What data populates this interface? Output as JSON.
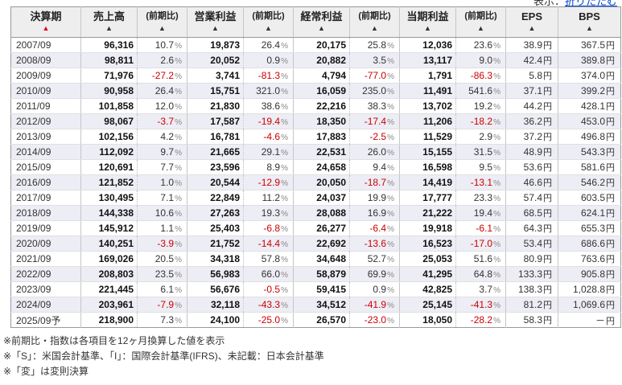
{
  "top_bar": {
    "prefix": "表示：",
    "link_label": "折りたたむ"
  },
  "colors": {
    "negative": "#cc0000",
    "sort_active": "#e60012",
    "link": "#0044cc",
    "header_bg": "#eeeeee",
    "row_alt_bg": "#ededf5"
  },
  "table": {
    "columns": [
      {
        "key": "period",
        "label": "決算期",
        "type": "period",
        "sort": "active"
      },
      {
        "key": "sales",
        "label": "売上高",
        "type": "value"
      },
      {
        "key": "sales_yoy",
        "label": "(前期比)",
        "type": "pct"
      },
      {
        "key": "op",
        "label": "営業利益",
        "type": "value"
      },
      {
        "key": "op_yoy",
        "label": "(前期比)",
        "type": "pct"
      },
      {
        "key": "ord",
        "label": "経常利益",
        "type": "value"
      },
      {
        "key": "ord_yoy",
        "label": "(前期比)",
        "type": "pct"
      },
      {
        "key": "net",
        "label": "当期利益",
        "type": "value"
      },
      {
        "key": "net_yoy",
        "label": "(前期比)",
        "type": "pct"
      },
      {
        "key": "eps",
        "label": "EPS",
        "type": "yen"
      },
      {
        "key": "bps",
        "label": "BPS",
        "type": "yen"
      }
    ],
    "rows": [
      {
        "period": "2007/09",
        "sales": "96,316",
        "sales_yoy": "10.7%",
        "op": "19,873",
        "op_yoy": "26.4%",
        "ord": "20,175",
        "ord_yoy": "25.8%",
        "net": "12,036",
        "net_yoy": "23.6%",
        "eps": "38.9円",
        "bps": "367.5円"
      },
      {
        "period": "2008/09",
        "sales": "98,811",
        "sales_yoy": "2.6%",
        "op": "20,052",
        "op_yoy": "0.9%",
        "ord": "20,882",
        "ord_yoy": "3.5%",
        "net": "13,117",
        "net_yoy": "9.0%",
        "eps": "42.4円",
        "bps": "389.8円"
      },
      {
        "period": "2009/09",
        "sales": "71,976",
        "sales_yoy": "-27.2%",
        "op": "3,741",
        "op_yoy": "-81.3%",
        "ord": "4,794",
        "ord_yoy": "-77.0%",
        "net": "1,791",
        "net_yoy": "-86.3%",
        "eps": "5.8円",
        "bps": "374.0円"
      },
      {
        "period": "2010/09",
        "sales": "90,958",
        "sales_yoy": "26.4%",
        "op": "15,751",
        "op_yoy": "321.0%",
        "ord": "16,059",
        "ord_yoy": "235.0%",
        "net": "11,491",
        "net_yoy": "541.6%",
        "eps": "37.1円",
        "bps": "399.2円"
      },
      {
        "period": "2011/09",
        "sales": "101,858",
        "sales_yoy": "12.0%",
        "op": "21,830",
        "op_yoy": "38.6%",
        "ord": "22,216",
        "ord_yoy": "38.3%",
        "net": "13,702",
        "net_yoy": "19.2%",
        "eps": "44.2円",
        "bps": "428.1円"
      },
      {
        "period": "2012/09",
        "sales": "98,067",
        "sales_yoy": "-3.7%",
        "op": "17,587",
        "op_yoy": "-19.4%",
        "ord": "18,350",
        "ord_yoy": "-17.4%",
        "net": "11,206",
        "net_yoy": "-18.2%",
        "eps": "36.2円",
        "bps": "453.0円"
      },
      {
        "period": "2013/09",
        "sales": "102,156",
        "sales_yoy": "4.2%",
        "op": "16,781",
        "op_yoy": "-4.6%",
        "ord": "17,883",
        "ord_yoy": "-2.5%",
        "net": "11,529",
        "net_yoy": "2.9%",
        "eps": "37.2円",
        "bps": "496.8円"
      },
      {
        "period": "2014/09",
        "sales": "112,092",
        "sales_yoy": "9.7%",
        "op": "21,665",
        "op_yoy": "29.1%",
        "ord": "22,531",
        "ord_yoy": "26.0%",
        "net": "15,155",
        "net_yoy": "31.5%",
        "eps": "48.9円",
        "bps": "543.3円"
      },
      {
        "period": "2015/09",
        "sales": "120,691",
        "sales_yoy": "7.7%",
        "op": "23,596",
        "op_yoy": "8.9%",
        "ord": "24,658",
        "ord_yoy": "9.4%",
        "net": "16,598",
        "net_yoy": "9.5%",
        "eps": "53.6円",
        "bps": "581.6円"
      },
      {
        "period": "2016/09",
        "sales": "121,852",
        "sales_yoy": "1.0%",
        "op": "20,544",
        "op_yoy": "-12.9%",
        "ord": "20,050",
        "ord_yoy": "-18.7%",
        "net": "14,419",
        "net_yoy": "-13.1%",
        "eps": "46.6円",
        "bps": "546.2円"
      },
      {
        "period": "2017/09",
        "sales": "130,495",
        "sales_yoy": "7.1%",
        "op": "22,849",
        "op_yoy": "11.2%",
        "ord": "24,037",
        "ord_yoy": "19.9%",
        "net": "17,777",
        "net_yoy": "23.3%",
        "eps": "57.4円",
        "bps": "603.5円"
      },
      {
        "period": "2018/09",
        "sales": "144,338",
        "sales_yoy": "10.6%",
        "op": "27,263",
        "op_yoy": "19.3%",
        "ord": "28,088",
        "ord_yoy": "16.9%",
        "net": "21,222",
        "net_yoy": "19.4%",
        "eps": "68.5円",
        "bps": "624.1円"
      },
      {
        "period": "2019/09",
        "sales": "145,912",
        "sales_yoy": "1.1%",
        "op": "25,403",
        "op_yoy": "-6.8%",
        "ord": "26,277",
        "ord_yoy": "-6.4%",
        "net": "19,918",
        "net_yoy": "-6.1%",
        "eps": "64.3円",
        "bps": "655.3円"
      },
      {
        "period": "2020/09",
        "sales": "140,251",
        "sales_yoy": "-3.9%",
        "op": "21,752",
        "op_yoy": "-14.4%",
        "ord": "22,692",
        "ord_yoy": "-13.6%",
        "net": "16,523",
        "net_yoy": "-17.0%",
        "eps": "53.4円",
        "bps": "686.6円"
      },
      {
        "period": "2021/09",
        "sales": "169,026",
        "sales_yoy": "20.5%",
        "op": "34,318",
        "op_yoy": "57.8%",
        "ord": "34,648",
        "ord_yoy": "52.7%",
        "net": "25,053",
        "net_yoy": "51.6%",
        "eps": "80.9円",
        "bps": "763.6円"
      },
      {
        "period": "2022/09",
        "sales": "208,803",
        "sales_yoy": "23.5%",
        "op": "56,983",
        "op_yoy": "66.0%",
        "ord": "58,879",
        "ord_yoy": "69.9%",
        "net": "41,295",
        "net_yoy": "64.8%",
        "eps": "133.3円",
        "bps": "905.8円"
      },
      {
        "period": "2023/09",
        "sales": "221,445",
        "sales_yoy": "6.1%",
        "op": "56,676",
        "op_yoy": "-0.5%",
        "ord": "59,415",
        "ord_yoy": "0.9%",
        "net": "42,825",
        "net_yoy": "3.7%",
        "eps": "138.3円",
        "bps": "1,028.8円"
      },
      {
        "period": "2024/09",
        "sales": "203,961",
        "sales_yoy": "-7.9%",
        "op": "32,118",
        "op_yoy": "-43.3%",
        "ord": "34,512",
        "ord_yoy": "-41.9%",
        "net": "25,145",
        "net_yoy": "-41.3%",
        "eps": "81.2円",
        "bps": "1,069.6円"
      },
      {
        "period": "2025/09予",
        "sales": "218,900",
        "sales_yoy": "7.3%",
        "op": "24,100",
        "op_yoy": "-25.0%",
        "ord": "26,570",
        "ord_yoy": "-23.0%",
        "net": "18,050",
        "net_yoy": "-28.2%",
        "eps": "58.3円",
        "bps": "－円"
      }
    ]
  },
  "notes": [
    "※前期比・指数は各項目を12ヶ月換算した値を表示",
    "※「S」：米国会計基準、「I」：国際会計基準(IFRS)、未記載：日本会計基準",
    "※「変」は変則決算"
  ]
}
